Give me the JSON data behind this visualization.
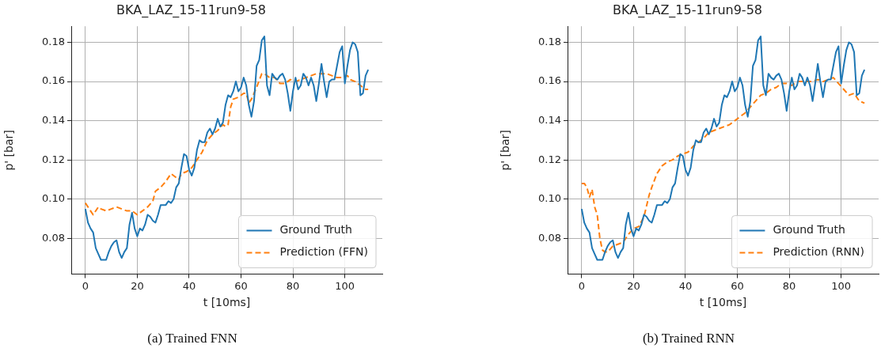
{
  "chart_data": [
    {
      "type": "line",
      "title": "BKA_LAZ_15-11run9-58",
      "xlabel": "t [10ms]",
      "ylabel": "p' [bar]",
      "annotations": [
        "(a) Trained FNN"
      ],
      "xlim": [
        -5.45,
        114.45
      ],
      "ylim": [
        0.0617,
        0.1882
      ],
      "xticks": [
        0,
        20,
        40,
        60,
        80,
        100
      ],
      "yticks": [
        0.08,
        {
          "value": 0.1,
          "label": "0.10"
        },
        0.12,
        0.14,
        0.16,
        0.18
      ],
      "grid": true,
      "legend": "bottom right",
      "series": [
        {
          "name": "Ground Truth",
          "color": "#1f77b4",
          "line_style": "solid",
          "x": [
            0,
            1,
            2,
            3,
            4,
            5,
            6,
            7,
            8,
            9,
            10,
            11,
            12,
            13,
            14,
            15,
            16,
            17,
            18,
            19,
            20,
            21,
            22,
            23,
            24,
            25,
            26,
            27,
            28,
            29,
            30,
            31,
            32,
            33,
            34,
            35,
            36,
            37,
            38,
            39,
            40,
            41,
            42,
            43,
            44,
            45,
            46,
            47,
            48,
            49,
            50,
            51,
            52,
            53,
            54,
            55,
            56,
            57,
            58,
            59,
            60,
            61,
            62,
            63,
            64,
            65,
            66,
            67,
            68,
            69,
            70,
            71,
            72,
            73,
            74,
            75,
            76,
            77,
            78,
            79,
            80,
            81,
            82,
            83,
            84,
            85,
            86,
            87,
            88,
            89,
            90,
            91,
            92,
            93,
            94,
            95,
            96,
            97,
            98,
            99,
            100,
            101,
            102,
            103,
            104,
            105,
            106,
            107,
            108,
            109
          ],
          "values": [
            0.095,
            0.088,
            0.085,
            0.083,
            0.075,
            0.072,
            0.069,
            0.069,
            0.069,
            0.073,
            0.076,
            0.078,
            0.079,
            0.073,
            0.07,
            0.073,
            0.075,
            0.087,
            0.093,
            0.085,
            0.081,
            0.085,
            0.084,
            0.087,
            0.092,
            0.091,
            0.089,
            0.088,
            0.092,
            0.097,
            0.097,
            0.097,
            0.099,
            0.098,
            0.1,
            0.106,
            0.108,
            0.116,
            0.123,
            0.122,
            0.115,
            0.112,
            0.116,
            0.125,
            0.13,
            0.129,
            0.129,
            0.134,
            0.136,
            0.133,
            0.136,
            0.141,
            0.137,
            0.139,
            0.148,
            0.153,
            0.152,
            0.155,
            0.16,
            0.155,
            0.157,
            0.162,
            0.158,
            0.148,
            0.142,
            0.15,
            0.168,
            0.171,
            0.181,
            0.183,
            0.158,
            0.153,
            0.164,
            0.162,
            0.161,
            0.163,
            0.164,
            0.161,
            0.154,
            0.145,
            0.155,
            0.162,
            0.156,
            0.158,
            0.164,
            0.162,
            0.158,
            0.162,
            0.158,
            0.15,
            0.159,
            0.169,
            0.16,
            0.152,
            0.16,
            0.161,
            0.161,
            0.168,
            0.175,
            0.178,
            0.159,
            0.168,
            0.176,
            0.18,
            0.179,
            0.175,
            0.153,
            0.154,
            0.163,
            0.166
          ]
        },
        {
          "name": "Prediction (FFN)",
          "color": "#ff7f0e",
          "line_style": "dashed",
          "x": [
            0,
            2,
            3,
            5,
            6,
            8,
            10,
            12,
            14,
            16,
            18,
            20,
            22,
            24,
            26,
            27,
            29,
            31,
            33,
            35,
            36,
            37,
            39,
            41,
            43,
            45,
            47,
            49,
            51,
            53,
            54,
            55,
            56,
            57,
            59,
            61,
            62,
            63,
            64,
            66,
            68,
            69,
            71,
            73,
            75,
            77,
            79,
            81,
            83,
            85,
            87,
            89,
            91,
            93,
            95,
            97,
            99,
            100,
            101,
            102,
            104,
            106,
            108,
            109
          ],
          "values": [
            0.098,
            0.094,
            0.092,
            0.096,
            0.095,
            0.094,
            0.095,
            0.096,
            0.095,
            0.094,
            0.094,
            0.092,
            0.094,
            0.096,
            0.099,
            0.104,
            0.106,
            0.109,
            0.113,
            0.111,
            0.11,
            0.113,
            0.114,
            0.116,
            0.12,
            0.124,
            0.13,
            0.133,
            0.135,
            0.138,
            0.137,
            0.138,
            0.147,
            0.151,
            0.152,
            0.154,
            0.154,
            0.149,
            0.151,
            0.157,
            0.164,
            0.164,
            0.162,
            0.162,
            0.159,
            0.159,
            0.161,
            0.16,
            0.161,
            0.162,
            0.163,
            0.164,
            0.164,
            0.164,
            0.163,
            0.162,
            0.162,
            0.163,
            0.163,
            0.161,
            0.16,
            0.158,
            0.156,
            0.156
          ]
        }
      ]
    },
    {
      "type": "line",
      "title": "BKA_LAZ_15-11run9-58",
      "xlabel": "t [10ms]",
      "ylabel": "p' [bar]",
      "annotations": [
        "(b) Trained RNN"
      ],
      "xlim": [
        -5.45,
        114.45
      ],
      "ylim": [
        0.0617,
        0.1882
      ],
      "xticks": [
        0,
        20,
        40,
        60,
        80,
        100
      ],
      "yticks": [
        0.08,
        {
          "value": 0.1,
          "label": "0.10"
        },
        0.12,
        0.14,
        0.16,
        0.18
      ],
      "grid": true,
      "legend": "bottom right",
      "series": [
        {
          "name": "Ground Truth",
          "color": "#1f77b4",
          "line_style": "solid",
          "x": [
            0,
            1,
            2,
            3,
            4,
            5,
            6,
            7,
            8,
            9,
            10,
            11,
            12,
            13,
            14,
            15,
            16,
            17,
            18,
            19,
            20,
            21,
            22,
            23,
            24,
            25,
            26,
            27,
            28,
            29,
            30,
            31,
            32,
            33,
            34,
            35,
            36,
            37,
            38,
            39,
            40,
            41,
            42,
            43,
            44,
            45,
            46,
            47,
            48,
            49,
            50,
            51,
            52,
            53,
            54,
            55,
            56,
            57,
            58,
            59,
            60,
            61,
            62,
            63,
            64,
            65,
            66,
            67,
            68,
            69,
            70,
            71,
            72,
            73,
            74,
            75,
            76,
            77,
            78,
            79,
            80,
            81,
            82,
            83,
            84,
            85,
            86,
            87,
            88,
            89,
            90,
            91,
            92,
            93,
            94,
            95,
            96,
            97,
            98,
            99,
            100,
            101,
            102,
            103,
            104,
            105,
            106,
            107,
            108,
            109
          ],
          "values": [
            0.095,
            0.088,
            0.085,
            0.083,
            0.075,
            0.072,
            0.069,
            0.069,
            0.069,
            0.073,
            0.076,
            0.078,
            0.079,
            0.073,
            0.07,
            0.073,
            0.075,
            0.087,
            0.093,
            0.085,
            0.081,
            0.085,
            0.084,
            0.087,
            0.092,
            0.091,
            0.089,
            0.088,
            0.092,
            0.097,
            0.097,
            0.097,
            0.099,
            0.098,
            0.1,
            0.106,
            0.108,
            0.116,
            0.123,
            0.122,
            0.115,
            0.112,
            0.116,
            0.125,
            0.13,
            0.129,
            0.129,
            0.134,
            0.136,
            0.133,
            0.136,
            0.141,
            0.137,
            0.139,
            0.148,
            0.153,
            0.152,
            0.155,
            0.16,
            0.155,
            0.157,
            0.162,
            0.158,
            0.148,
            0.142,
            0.15,
            0.168,
            0.171,
            0.181,
            0.183,
            0.158,
            0.153,
            0.164,
            0.162,
            0.161,
            0.163,
            0.164,
            0.161,
            0.154,
            0.145,
            0.155,
            0.162,
            0.156,
            0.158,
            0.164,
            0.162,
            0.158,
            0.162,
            0.158,
            0.15,
            0.159,
            0.169,
            0.16,
            0.152,
            0.16,
            0.161,
            0.161,
            0.168,
            0.175,
            0.178,
            0.159,
            0.168,
            0.176,
            0.18,
            0.179,
            0.175,
            0.153,
            0.154,
            0.163,
            0.166
          ]
        },
        {
          "name": "Prediction (RNN)",
          "color": "#ff7f0e",
          "line_style": "dashed",
          "x": [
            0,
            1,
            2,
            3,
            4,
            5,
            6,
            7,
            8,
            9,
            10,
            12,
            14,
            16,
            18,
            20,
            22,
            24,
            26,
            27,
            29,
            31,
            33,
            35,
            37,
            39,
            41,
            43,
            45,
            47,
            49,
            51,
            53,
            55,
            57,
            59,
            61,
            63,
            65,
            67,
            69,
            71,
            73,
            75,
            77,
            79,
            81,
            83,
            85,
            87,
            89,
            91,
            93,
            95,
            97,
            99,
            101,
            103,
            105,
            107,
            109
          ],
          "values": [
            0.108,
            0.108,
            0.106,
            0.101,
            0.105,
            0.096,
            0.092,
            0.08,
            0.074,
            0.073,
            0.073,
            0.076,
            0.077,
            0.078,
            0.082,
            0.085,
            0.086,
            0.091,
            0.102,
            0.106,
            0.113,
            0.117,
            0.119,
            0.12,
            0.122,
            0.123,
            0.124,
            0.127,
            0.129,
            0.131,
            0.134,
            0.135,
            0.136,
            0.137,
            0.138,
            0.14,
            0.142,
            0.144,
            0.147,
            0.15,
            0.153,
            0.154,
            0.156,
            0.157,
            0.159,
            0.159,
            0.158,
            0.16,
            0.16,
            0.16,
            0.16,
            0.161,
            0.16,
            0.161,
            0.162,
            0.159,
            0.156,
            0.153,
            0.154,
            0.15,
            0.149
          ]
        }
      ]
    }
  ]
}
